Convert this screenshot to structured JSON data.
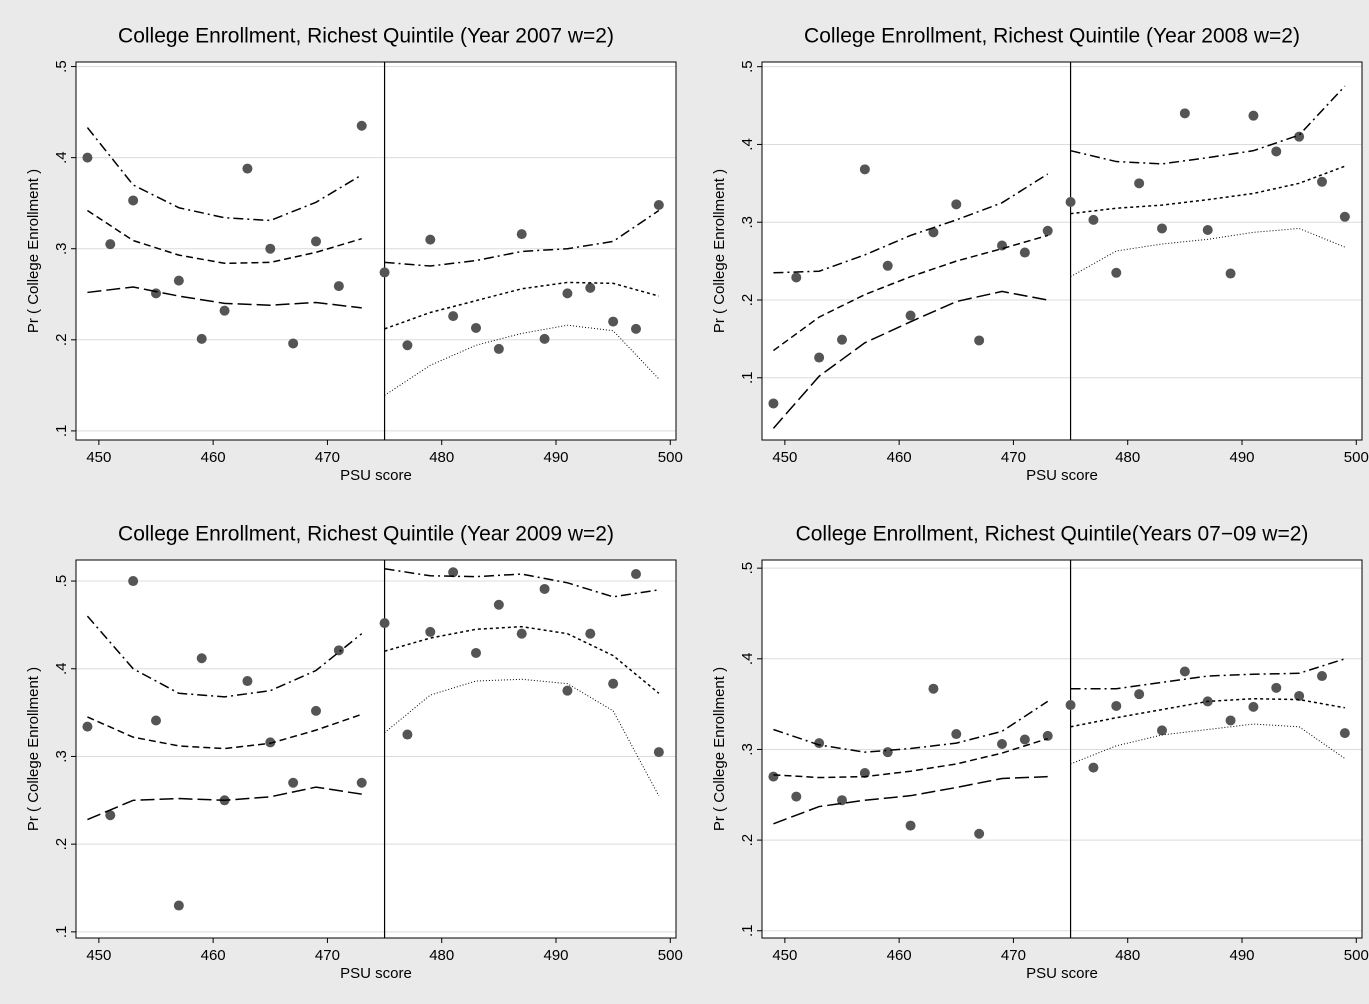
{
  "chart_data": [
    {
      "type": "scatter",
      "title": "College Enrollment, Richest Quintile (Year 2007 w=2)",
      "xlabel": "PSU score",
      "ylabel": "Pr ( College Enrollment )",
      "xlim": [
        448,
        500.5
      ],
      "ylim": [
        0.09,
        0.505
      ],
      "xticks": [
        450,
        460,
        470,
        480,
        490,
        500
      ],
      "yticks": [
        {
          "value": 0.1,
          "label": ".1"
        },
        {
          "value": 0.2,
          "label": ".2"
        },
        {
          "value": 0.3,
          "label": ".3"
        },
        {
          "value": 0.4,
          "label": ".4"
        },
        {
          "value": 0.5,
          "label": ".5"
        }
      ],
      "grid": true,
      "cutoff": 475,
      "point_color": "#555555",
      "line_color": "#000000",
      "points": {
        "x": [
          449,
          451,
          453,
          455,
          457,
          459,
          461,
          463,
          465,
          467,
          469,
          471,
          473,
          475,
          477,
          479,
          481,
          483,
          485,
          487,
          489,
          491,
          493,
          495,
          497,
          499
        ],
        "y": [
          0.4,
          0.305,
          0.353,
          0.251,
          0.265,
          0.201,
          0.232,
          0.388,
          0.3,
          0.196,
          0.308,
          0.259,
          0.435,
          0.274,
          0.194,
          0.31,
          0.226,
          0.213,
          0.19,
          0.316,
          0.201,
          0.251,
          0.257,
          0.22,
          0.212,
          0.348
        ]
      },
      "lines": [
        {
          "style": "dash-dot",
          "x": [
            449,
            453,
            457,
            461,
            465,
            469,
            473
          ],
          "values": [
            0.433,
            0.37,
            0.345,
            0.334,
            0.331,
            0.351,
            0.381
          ]
        },
        {
          "style": "dash",
          "x": [
            449,
            453,
            457,
            461,
            465,
            469,
            473
          ],
          "values": [
            0.342,
            0.309,
            0.293,
            0.284,
            0.285,
            0.296,
            0.311
          ]
        },
        {
          "style": "long-dash",
          "x": [
            449,
            453,
            457,
            461,
            465,
            469,
            473
          ],
          "values": [
            0.252,
            0.258,
            0.248,
            0.24,
            0.238,
            0.241,
            0.235
          ]
        },
        {
          "style": "dash-dot",
          "x": [
            475,
            479,
            483,
            487,
            491,
            495,
            499
          ],
          "values": [
            0.285,
            0.281,
            0.287,
            0.297,
            0.3,
            0.308,
            0.342
          ]
        },
        {
          "style": "dot",
          "x": [
            475,
            479,
            483,
            487,
            491,
            495,
            499
          ],
          "values": [
            0.212,
            0.23,
            0.243,
            0.256,
            0.263,
            0.262,
            0.248
          ]
        },
        {
          "style": "fine-dot",
          "x": [
            475,
            479,
            483,
            487,
            491,
            495,
            499
          ],
          "values": [
            0.139,
            0.172,
            0.194,
            0.207,
            0.216,
            0.21,
            0.157
          ]
        }
      ]
    },
    {
      "type": "scatter",
      "title": "College Enrollment, Richest Quintile (Year 2008 w=2)",
      "xlabel": "PSU score",
      "ylabel": "Pr ( College Enrollment )",
      "xlim": [
        448,
        500.5
      ],
      "ylim": [
        0.02,
        0.506
      ],
      "xticks": [
        450,
        460,
        470,
        480,
        490,
        500
      ],
      "yticks": [
        {
          "value": 0.1,
          "label": ".1"
        },
        {
          "value": 0.2,
          "label": ".2"
        },
        {
          "value": 0.3,
          "label": ".3"
        },
        {
          "value": 0.4,
          "label": ".4"
        },
        {
          "value": 0.5,
          "label": ".5"
        }
      ],
      "grid": true,
      "cutoff": 475,
      "point_color": "#555555",
      "line_color": "#000000",
      "points": {
        "x": [
          449,
          451,
          453,
          455,
          457,
          459,
          461,
          463,
          465,
          467,
          469,
          471,
          473,
          475,
          477,
          479,
          481,
          483,
          485,
          487,
          489,
          491,
          493,
          495,
          497,
          499
        ],
        "y": [
          0.067,
          0.229,
          0.126,
          0.149,
          0.368,
          0.244,
          0.18,
          0.287,
          0.323,
          0.148,
          0.27,
          0.261,
          0.289,
          0.326,
          0.303,
          0.235,
          0.35,
          0.292,
          0.44,
          0.29,
          0.234,
          0.437,
          0.391,
          0.41,
          0.352,
          0.307
        ]
      },
      "lines": [
        {
          "style": "dash-dot",
          "x": [
            449,
            453,
            457,
            461,
            465,
            469,
            473
          ],
          "values": [
            0.235,
            0.237,
            0.258,
            0.283,
            0.303,
            0.325,
            0.362
          ]
        },
        {
          "style": "dash",
          "x": [
            449,
            453,
            457,
            461,
            465,
            469,
            473
          ],
          "values": [
            0.135,
            0.178,
            0.207,
            0.23,
            0.25,
            0.266,
            0.283
          ]
        },
        {
          "style": "long-dash",
          "x": [
            449,
            453,
            457,
            461,
            465,
            469,
            473
          ],
          "values": [
            0.035,
            0.102,
            0.145,
            0.172,
            0.198,
            0.211,
            0.2
          ]
        },
        {
          "style": "dash-dot",
          "x": [
            475,
            479,
            483,
            487,
            491,
            495,
            499
          ],
          "values": [
            0.392,
            0.378,
            0.375,
            0.383,
            0.392,
            0.412,
            0.475
          ]
        },
        {
          "style": "dot",
          "x": [
            475,
            479,
            483,
            487,
            491,
            495,
            499
          ],
          "values": [
            0.311,
            0.318,
            0.322,
            0.329,
            0.337,
            0.35,
            0.372
          ]
        },
        {
          "style": "fine-dot",
          "x": [
            475,
            479,
            483,
            487,
            491,
            495,
            499
          ],
          "values": [
            0.23,
            0.263,
            0.272,
            0.278,
            0.287,
            0.292,
            0.268
          ]
        }
      ]
    },
    {
      "type": "scatter",
      "title": "College Enrollment, Richest Quintile (Year 2009 w=2)",
      "xlabel": "PSU score",
      "ylabel": "Pr ( College Enrollment )",
      "xlim": [
        448,
        500.5
      ],
      "ylim": [
        0.093,
        0.524
      ],
      "xticks": [
        450,
        460,
        470,
        480,
        490,
        500
      ],
      "yticks": [
        {
          "value": 0.1,
          "label": ".1"
        },
        {
          "value": 0.2,
          "label": ".2"
        },
        {
          "value": 0.3,
          "label": ".3"
        },
        {
          "value": 0.4,
          "label": ".4"
        },
        {
          "value": 0.5,
          "label": ".5"
        }
      ],
      "grid": true,
      "cutoff": 475,
      "point_color": "#555555",
      "line_color": "#000000",
      "points": {
        "x": [
          449,
          451,
          453,
          455,
          457,
          459,
          461,
          463,
          465,
          467,
          469,
          471,
          473,
          475,
          477,
          479,
          481,
          483,
          485,
          487,
          489,
          491,
          493,
          495,
          497,
          499
        ],
        "y": [
          0.334,
          0.233,
          0.5,
          0.341,
          0.13,
          0.412,
          0.25,
          0.386,
          0.316,
          0.27,
          0.352,
          0.421,
          0.27,
          0.452,
          0.325,
          0.442,
          0.51,
          0.418,
          0.473,
          0.44,
          0.491,
          0.375,
          0.44,
          0.383,
          0.508,
          0.305
        ]
      },
      "lines": [
        {
          "style": "dash-dot",
          "x": [
            449,
            453,
            457,
            461,
            465,
            469,
            473
          ],
          "values": [
            0.46,
            0.4,
            0.372,
            0.368,
            0.375,
            0.398,
            0.44
          ]
        },
        {
          "style": "dash",
          "x": [
            449,
            453,
            457,
            461,
            465,
            469,
            473
          ],
          "values": [
            0.345,
            0.322,
            0.312,
            0.309,
            0.315,
            0.33,
            0.348
          ]
        },
        {
          "style": "long-dash",
          "x": [
            449,
            453,
            457,
            461,
            465,
            469,
            473
          ],
          "values": [
            0.228,
            0.25,
            0.252,
            0.25,
            0.254,
            0.265,
            0.257
          ]
        },
        {
          "style": "dash-dot",
          "x": [
            475,
            479,
            483,
            487,
            491,
            495,
            499
          ],
          "values": [
            0.514,
            0.506,
            0.505,
            0.508,
            0.498,
            0.482,
            0.49
          ]
        },
        {
          "style": "dot",
          "x": [
            475,
            479,
            483,
            487,
            491,
            495,
            499
          ],
          "values": [
            0.42,
            0.435,
            0.445,
            0.448,
            0.44,
            0.415,
            0.372
          ]
        },
        {
          "style": "fine-dot",
          "x": [
            475,
            479,
            483,
            487,
            491,
            495,
            499
          ],
          "values": [
            0.327,
            0.37,
            0.386,
            0.388,
            0.383,
            0.352,
            0.255
          ]
        }
      ]
    },
    {
      "type": "scatter",
      "title": "College Enrollment, Richest Quintile(Years 07−09 w=2)",
      "xlabel": "PSU score",
      "ylabel": "Pr ( College Enrollment )",
      "xlim": [
        448,
        500.5
      ],
      "ylim": [
        0.092,
        0.509
      ],
      "xticks": [
        450,
        460,
        470,
        480,
        490,
        500
      ],
      "yticks": [
        {
          "value": 0.1,
          "label": ".1"
        },
        {
          "value": 0.2,
          "label": ".2"
        },
        {
          "value": 0.3,
          "label": ".3"
        },
        {
          "value": 0.4,
          "label": ".4"
        },
        {
          "value": 0.5,
          "label": ".5"
        }
      ],
      "grid": true,
      "cutoff": 475,
      "point_color": "#555555",
      "line_color": "#000000",
      "points": {
        "x": [
          449,
          451,
          453,
          455,
          457,
          459,
          461,
          463,
          465,
          467,
          469,
          471,
          473,
          475,
          477,
          479,
          481,
          483,
          485,
          487,
          489,
          491,
          493,
          495,
          497,
          499
        ],
        "y": [
          0.27,
          0.248,
          0.307,
          0.244,
          0.274,
          0.297,
          0.216,
          0.367,
          0.317,
          0.207,
          0.306,
          0.311,
          0.315,
          0.349,
          0.28,
          0.348,
          0.361,
          0.321,
          0.386,
          0.353,
          0.332,
          0.347,
          0.368,
          0.359,
          0.381,
          0.318
        ]
      },
      "lines": [
        {
          "style": "dash-dot",
          "x": [
            449,
            453,
            457,
            461,
            465,
            469,
            473
          ],
          "values": [
            0.322,
            0.305,
            0.297,
            0.301,
            0.307,
            0.32,
            0.353
          ]
        },
        {
          "style": "dash",
          "x": [
            449,
            453,
            457,
            461,
            465,
            469,
            473
          ],
          "values": [
            0.272,
            0.269,
            0.27,
            0.276,
            0.284,
            0.296,
            0.312
          ]
        },
        {
          "style": "long-dash",
          "x": [
            449,
            453,
            457,
            461,
            465,
            469,
            473
          ],
          "values": [
            0.218,
            0.237,
            0.244,
            0.249,
            0.258,
            0.268,
            0.27
          ]
        },
        {
          "style": "dash-dot",
          "x": [
            475,
            479,
            483,
            487,
            491,
            495,
            499
          ],
          "values": [
            0.367,
            0.367,
            0.374,
            0.381,
            0.383,
            0.384,
            0.4
          ]
        },
        {
          "style": "dot",
          "x": [
            475,
            479,
            483,
            487,
            491,
            495,
            499
          ],
          "values": [
            0.325,
            0.335,
            0.344,
            0.353,
            0.356,
            0.355,
            0.346
          ]
        },
        {
          "style": "fine-dot",
          "x": [
            475,
            479,
            483,
            487,
            491,
            495,
            499
          ],
          "values": [
            0.284,
            0.304,
            0.316,
            0.322,
            0.328,
            0.325,
            0.29
          ]
        }
      ]
    }
  ]
}
